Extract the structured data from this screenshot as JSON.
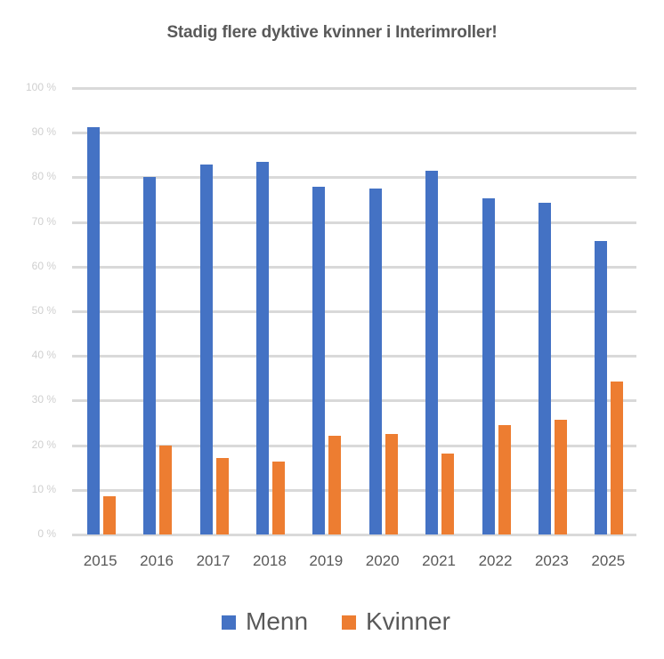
{
  "chart_data": {
    "type": "bar",
    "title": "Stadig flere dyktive kvinner i Interimroller!",
    "xlabel": "",
    "ylabel": "",
    "categories": [
      "2015",
      "2016",
      "2017",
      "2018",
      "2019",
      "2020",
      "2021",
      "2022",
      "2023",
      "2025"
    ],
    "series": [
      {
        "name": "Menn",
        "color": "#4472c4",
        "values": [
          91.3,
          80.0,
          82.8,
          83.5,
          77.8,
          77.5,
          81.4,
          75.3,
          74.3,
          65.7
        ]
      },
      {
        "name": "Kvinner",
        "color": "#ed7d31",
        "values": [
          8.5,
          20.0,
          17.1,
          16.3,
          22.1,
          22.5,
          18.1,
          24.6,
          25.7,
          34.3
        ]
      }
    ],
    "ylim": [
      0,
      100
    ],
    "yticks": [
      "0 %",
      "10 %",
      "20 %",
      "30 %",
      "40 %",
      "50 %",
      "60 %",
      "70 %",
      "80 %",
      "90 %",
      "100 %"
    ],
    "grid": true,
    "legend_position": "bottom"
  }
}
